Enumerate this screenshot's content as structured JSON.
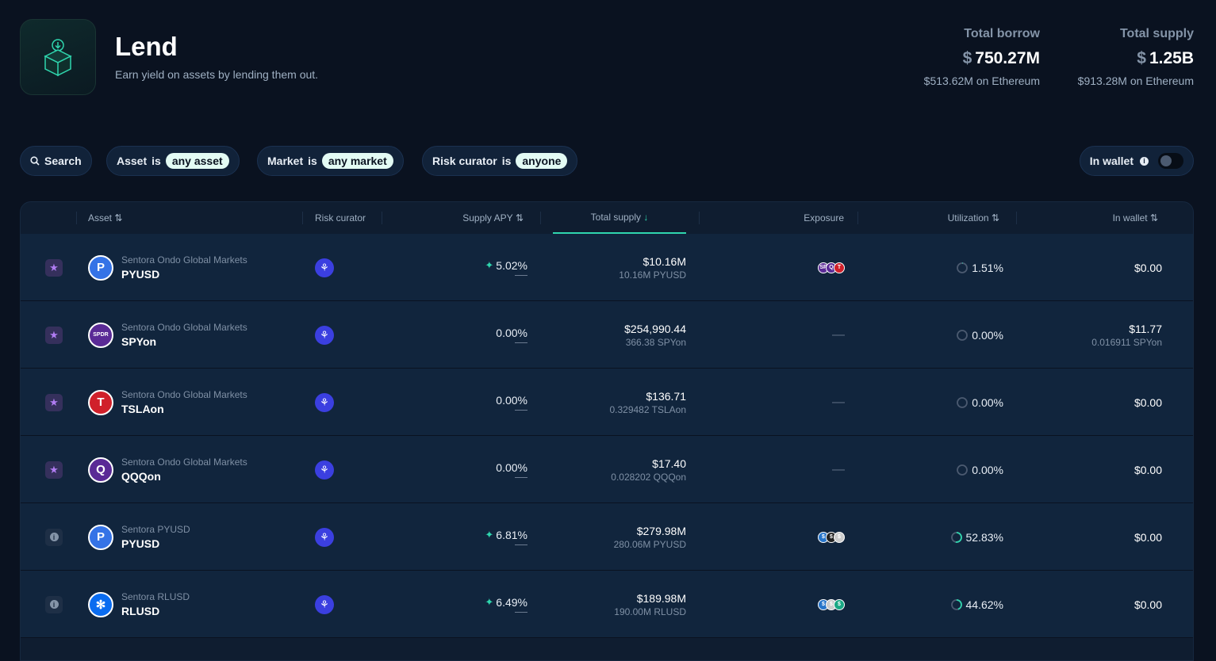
{
  "header": {
    "title": "Lend",
    "subtitle": "Earn yield on assets by lending them out."
  },
  "stats": [
    {
      "label": "Total borrow",
      "currency": "$",
      "value": "750.27M",
      "sub": "$513.62M on Ethereum"
    },
    {
      "label": "Total supply",
      "currency": "$",
      "value": "1.25B",
      "sub": "$913.28M on Ethereum"
    }
  ],
  "filters": {
    "search": "Search",
    "asset": {
      "label": "Asset",
      "op": "is",
      "value": "any asset"
    },
    "market": {
      "label": "Market",
      "op": "is",
      "value": "any market"
    },
    "curator": {
      "label": "Risk curator",
      "op": "is",
      "value": "anyone"
    },
    "in_wallet": "In wallet"
  },
  "columns": {
    "asset": "Asset",
    "curator": "Risk curator",
    "apy": "Supply APY",
    "total": "Total supply",
    "exposure": "Exposure",
    "util": "Utilization",
    "wallet": "In wallet"
  },
  "rows": [
    {
      "flag": "star",
      "market": "Sentora Ondo Global Markets",
      "symbol": "PYUSD",
      "icon_color": "#3573e6",
      "icon_text": "P",
      "apy": "5.02%",
      "boosted": true,
      "total": "$10.16M",
      "total_sub": "10.16M PYUSD",
      "exposure": [
        [
          "#5a2a96",
          "SP"
        ],
        [
          "#5a2a96",
          "Q"
        ],
        [
          "#d0202a",
          "T"
        ]
      ],
      "util": "1.51%",
      "util_frac": 0.0151,
      "wallet": "$0.00",
      "wallet_sub": ""
    },
    {
      "flag": "star",
      "market": "Sentora Ondo Global Markets",
      "symbol": "SPYon",
      "icon_color": "#5a2a96",
      "icon_text": "SPDR",
      "apy": "0.00%",
      "boosted": false,
      "total": "$254,990.44",
      "total_sub": "366.38 SPYon",
      "exposure": [],
      "exposure_empty": "—",
      "util": "0.00%",
      "util_frac": 0,
      "wallet": "$11.77",
      "wallet_sub": "0.016911 SPYon"
    },
    {
      "flag": "star",
      "market": "Sentora Ondo Global Markets",
      "symbol": "TSLAon",
      "icon_color": "#d0202a",
      "icon_text": "T",
      "apy": "0.00%",
      "boosted": false,
      "total": "$136.71",
      "total_sub": "0.329482 TSLAon",
      "exposure": [],
      "exposure_empty": "—",
      "util": "0.00%",
      "util_frac": 0,
      "wallet": "$0.00",
      "wallet_sub": ""
    },
    {
      "flag": "star",
      "market": "Sentora Ondo Global Markets",
      "symbol": "QQQon",
      "icon_color": "#5a2a96",
      "icon_text": "Q",
      "apy": "0.00%",
      "boosted": false,
      "total": "$17.40",
      "total_sub": "0.028202 QQQon",
      "exposure": [],
      "exposure_empty": "—",
      "util": "0.00%",
      "util_frac": 0,
      "wallet": "$0.00",
      "wallet_sub": ""
    },
    {
      "flag": "info",
      "market": "Sentora PYUSD",
      "symbol": "PYUSD",
      "icon_color": "#3573e6",
      "icon_text": "P",
      "apy": "6.81%",
      "boosted": true,
      "total": "$279.98M",
      "total_sub": "280.06M PYUSD",
      "exposure": [
        [
          "#2775ca",
          "$"
        ],
        [
          "#222",
          "$"
        ],
        [
          "#ccc",
          "$"
        ]
      ],
      "util": "52.83%",
      "util_frac": 0.5283,
      "wallet": "$0.00",
      "wallet_sub": ""
    },
    {
      "flag": "info",
      "market": "Sentora RLUSD",
      "symbol": "RLUSD",
      "icon_color": "#0a6cf0",
      "icon_text": "✻",
      "apy": "6.49%",
      "boosted": true,
      "total": "$189.98M",
      "total_sub": "190.00M RLUSD",
      "exposure": [
        [
          "#2775ca",
          "$"
        ],
        [
          "#ccc",
          "$"
        ],
        [
          "#1aa884",
          "$"
        ]
      ],
      "util": "44.62%",
      "util_frac": 0.4462,
      "wallet": "$0.00",
      "wallet_sub": ""
    }
  ],
  "colors": {
    "accent": "#2fd6ae",
    "bg": "#0a1220",
    "row": "#11253d"
  }
}
